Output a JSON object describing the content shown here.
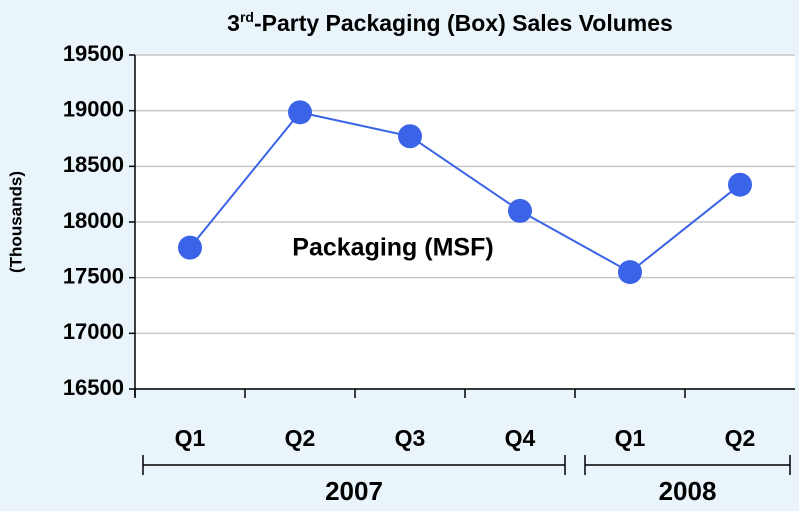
{
  "chart_data": {
    "type": "line",
    "title": [
      "3",
      "rd",
      "-Party Packaging (Box) Sales Volumes"
    ],
    "y_label": "(Thousands)",
    "annotation": "Packaging (MSF)",
    "groups": [
      {
        "label": "2007",
        "categories": [
          "Q1",
          "Q2",
          "Q3",
          "Q4"
        ]
      },
      {
        "label": "2008",
        "categories": [
          "Q1",
          "Q2"
        ]
      }
    ],
    "series": [
      {
        "name": "Packaging (MSF)",
        "color": "#3a63e8",
        "values": [
          17770,
          18985,
          18770,
          18100,
          17550,
          18335
        ]
      }
    ],
    "ylim": [
      16500,
      19500
    ],
    "yticks": [
      16500,
      17000,
      17500,
      18000,
      18500,
      19000,
      19500
    ],
    "grid": true
  }
}
